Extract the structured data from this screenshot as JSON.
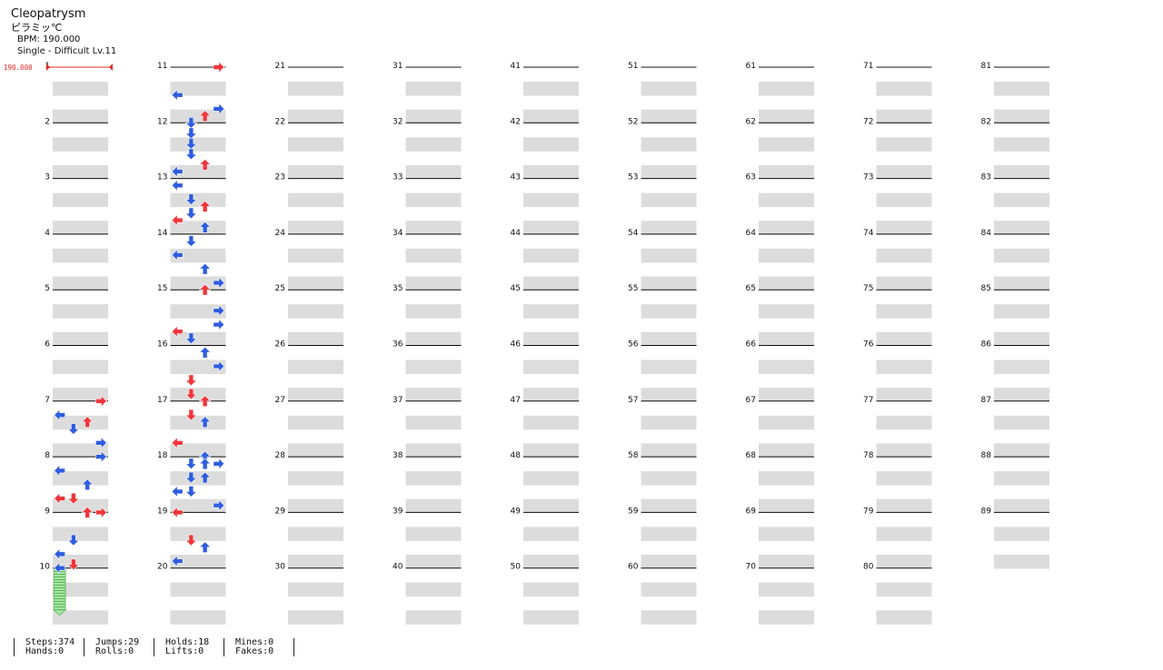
{
  "song": {
    "title": "Cleopatrysm",
    "artist": "ピラミッ℃",
    "bpm_label": "BPM: 190.000",
    "difficulty_label": "Single - Difficult Lv.11",
    "bpm_marker": "190.000"
  },
  "colors": {
    "red": "#f0353b",
    "blue": "#2f5de0",
    "hold_green": "#a6e5a0",
    "row_shade": "#dcdcdc"
  },
  "stats": {
    "steps": "Steps:374",
    "hands": "Hands:0",
    "jumps": "Jumps:29",
    "rolls": "Rolls:0",
    "holds": "Holds:18",
    "lifts": "Lifts:0",
    "mines": "Mines:0",
    "fakes": "Fakes:0"
  },
  "measures": [
    {
      "n": 1,
      "notes": []
    },
    {
      "n": 2,
      "notes": []
    },
    {
      "n": 3,
      "notes": []
    },
    {
      "n": 4,
      "notes": []
    },
    {
      "n": 5,
      "notes": []
    },
    {
      "n": 6,
      "notes": []
    },
    {
      "n": 7,
      "notes": [
        [
          0,
          3,
          "R"
        ],
        [
          4,
          0,
          "B"
        ],
        [
          6,
          2,
          "R"
        ],
        [
          8,
          1,
          "B"
        ],
        [
          12,
          3,
          "B"
        ]
      ]
    },
    {
      "n": 8,
      "notes": [
        [
          0,
          3,
          "B"
        ],
        [
          4,
          0,
          "B"
        ],
        [
          8,
          2,
          "B"
        ]
      ]
    },
    {
      "n": 9,
      "notes": [
        [
          -4,
          0,
          "R"
        ],
        [
          -4,
          1,
          "R"
        ],
        [
          0,
          2,
          "R"
        ],
        [
          0,
          3,
          "R"
        ],
        [
          8,
          1,
          "B"
        ],
        [
          12,
          0,
          "B"
        ],
        [
          15,
          1,
          "R"
        ]
      ]
    },
    {
      "n": 10,
      "notes": [
        [
          0,
          0,
          "B",
          12
        ]
      ]
    },
    {
      "n": 11,
      "notes": [
        [
          0,
          3,
          "R"
        ],
        [
          8,
          0,
          "B"
        ],
        [
          12,
          3,
          "B"
        ],
        [
          14,
          2,
          "R"
        ],
        [
          16,
          1,
          "B"
        ]
      ]
    },
    {
      "n": 12,
      "notes": [
        [
          3,
          1,
          "B"
        ],
        [
          6,
          1,
          "B"
        ],
        [
          9,
          1,
          "B"
        ],
        [
          12,
          2,
          "R"
        ],
        [
          14,
          0,
          "B"
        ]
      ]
    },
    {
      "n": 13,
      "notes": [
        [
          2,
          0,
          "B"
        ],
        [
          6,
          1,
          "B"
        ],
        [
          8,
          2,
          "R"
        ],
        [
          10,
          1,
          "B"
        ],
        [
          12,
          0,
          "R"
        ]
      ]
    },
    {
      "n": 14,
      "notes": [
        [
          -2,
          2,
          "B"
        ],
        [
          2,
          1,
          "B"
        ],
        [
          6,
          0,
          "B"
        ],
        [
          10,
          2,
          "B"
        ],
        [
          14,
          3,
          "B"
        ]
      ]
    },
    {
      "n": 15,
      "notes": [
        [
          0,
          2,
          "R"
        ],
        [
          6,
          3,
          "B"
        ],
        [
          10,
          3,
          "B"
        ],
        [
          12,
          0,
          "R"
        ],
        [
          14,
          1,
          "B"
        ]
      ]
    },
    {
      "n": 16,
      "notes": [
        [
          2,
          2,
          "B"
        ],
        [
          6,
          3,
          "B"
        ],
        [
          10,
          1,
          "R"
        ],
        [
          14,
          1,
          "R"
        ]
      ]
    },
    {
      "n": 17,
      "notes": [
        [
          0,
          2,
          "R"
        ],
        [
          4,
          1,
          "R"
        ],
        [
          6,
          2,
          "B"
        ],
        [
          12,
          0,
          "R"
        ]
      ]
    },
    {
      "n": 18,
      "notes": [
        [
          0,
          2,
          "B"
        ],
        [
          2,
          1,
          "B"
        ],
        [
          2,
          2,
          "B"
        ],
        [
          2,
          3,
          "B"
        ],
        [
          6,
          1,
          "B"
        ],
        [
          6,
          2,
          "B"
        ],
        [
          10,
          0,
          "B"
        ],
        [
          10,
          1,
          "B"
        ],
        [
          14,
          3,
          "B"
        ]
      ]
    },
    {
      "n": 19,
      "notes": [
        [
          0,
          0,
          "R"
        ],
        [
          8,
          1,
          "R"
        ],
        [
          10,
          2,
          "B"
        ],
        [
          14,
          0,
          "B"
        ]
      ]
    }
  ]
}
